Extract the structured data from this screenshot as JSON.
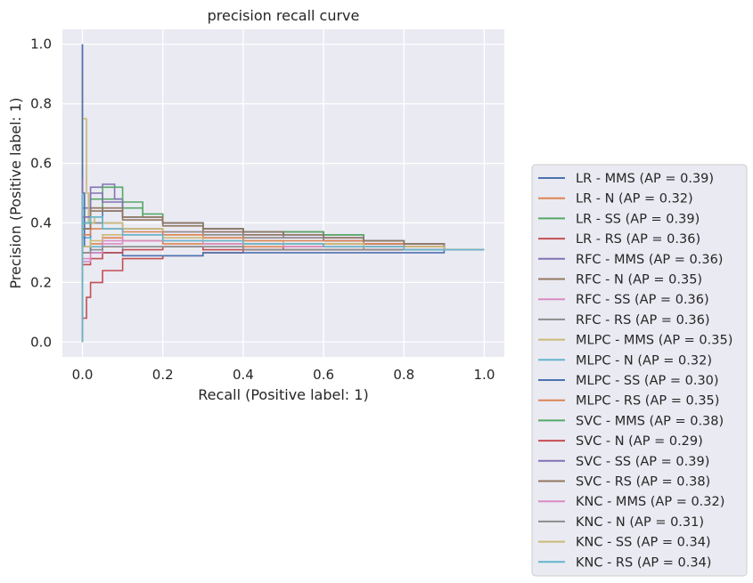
{
  "chart_data": {
    "type": "line",
    "title": "precision recall curve",
    "xlabel": "Recall (Positive label: 1)",
    "ylabel": "Precision (Positive label: 1)",
    "xlim": [
      -0.05,
      1.05
    ],
    "ylim": [
      -0.05,
      1.05
    ],
    "xticks": [
      0.0,
      0.2,
      0.4,
      0.6,
      0.8,
      1.0
    ],
    "xtick_labels": [
      "0.0",
      "0.2",
      "0.4",
      "0.6",
      "0.8",
      "1.0"
    ],
    "yticks": [
      0.0,
      0.2,
      0.4,
      0.6,
      0.8,
      1.0
    ],
    "ytick_labels": [
      "0.0",
      "0.2",
      "0.4",
      "0.6",
      "0.8",
      "1.0"
    ],
    "grid": true,
    "legend_position": "outside-right",
    "series": [
      {
        "name": "LR - MMS (AP = 0.39)",
        "color": "#4c72b0",
        "points": [
          [
            0,
            0.0
          ],
          [
            0,
            0.5
          ],
          [
            0.02,
            0.35
          ],
          [
            0.05,
            0.4
          ],
          [
            0.1,
            0.44
          ],
          [
            0.2,
            0.42
          ],
          [
            0.3,
            0.4
          ],
          [
            0.4,
            0.38
          ],
          [
            0.5,
            0.37
          ],
          [
            0.6,
            0.36
          ],
          [
            0.7,
            0.35
          ],
          [
            0.8,
            0.33
          ],
          [
            0.9,
            0.32
          ],
          [
            1.0,
            0.31
          ]
        ]
      },
      {
        "name": "LR - N (AP = 0.32)",
        "color": "#dd8452",
        "points": [
          [
            0,
            0.0
          ],
          [
            0,
            0.5
          ],
          [
            0.02,
            0.3
          ],
          [
            0.05,
            0.33
          ],
          [
            0.1,
            0.35
          ],
          [
            0.2,
            0.34
          ],
          [
            0.3,
            0.33
          ],
          [
            0.4,
            0.33
          ],
          [
            0.5,
            0.32
          ],
          [
            0.6,
            0.32
          ],
          [
            0.7,
            0.32
          ],
          [
            0.8,
            0.31
          ],
          [
            0.9,
            0.31
          ],
          [
            1.0,
            0.31
          ]
        ]
      },
      {
        "name": "LR - SS (AP = 0.39)",
        "color": "#55a868",
        "points": [
          [
            0,
            0.0
          ],
          [
            0,
            0.5
          ],
          [
            0.02,
            0.38
          ],
          [
            0.05,
            0.45
          ],
          [
            0.1,
            0.48
          ],
          [
            0.15,
            0.45
          ],
          [
            0.2,
            0.42
          ],
          [
            0.3,
            0.4
          ],
          [
            0.4,
            0.38
          ],
          [
            0.5,
            0.37
          ],
          [
            0.6,
            0.37
          ],
          [
            0.7,
            0.36
          ],
          [
            0.8,
            0.34
          ],
          [
            0.9,
            0.33
          ],
          [
            1.0,
            0.31
          ]
        ]
      },
      {
        "name": "LR - RS (AP = 0.36)",
        "color": "#c44e52",
        "points": [
          [
            0,
            0.0
          ],
          [
            0,
            0.12
          ],
          [
            0.01,
            0.08
          ],
          [
            0.02,
            0.15
          ],
          [
            0.05,
            0.2
          ],
          [
            0.1,
            0.24
          ],
          [
            0.2,
            0.28
          ],
          [
            0.3,
            0.29
          ],
          [
            0.4,
            0.3
          ],
          [
            0.5,
            0.31
          ],
          [
            0.6,
            0.32
          ],
          [
            0.7,
            0.33
          ],
          [
            0.8,
            0.32
          ],
          [
            0.9,
            0.32
          ],
          [
            1.0,
            0.31
          ]
        ]
      },
      {
        "name": "RFC - MMS (AP = 0.36)",
        "color": "#8172b3",
        "points": [
          [
            0,
            0.0
          ],
          [
            0,
            0.6
          ],
          [
            0.02,
            0.45
          ],
          [
            0.05,
            0.52
          ],
          [
            0.08,
            0.53
          ],
          [
            0.1,
            0.48
          ],
          [
            0.2,
            0.42
          ],
          [
            0.3,
            0.4
          ],
          [
            0.4,
            0.37
          ],
          [
            0.5,
            0.36
          ],
          [
            0.6,
            0.35
          ],
          [
            0.7,
            0.34
          ],
          [
            0.8,
            0.33
          ],
          [
            0.9,
            0.32
          ],
          [
            1.0,
            0.31
          ]
        ]
      },
      {
        "name": "RFC - N (AP = 0.35)",
        "color": "#937860",
        "points": [
          [
            0,
            0.0
          ],
          [
            0,
            0.5
          ],
          [
            0.02,
            0.4
          ],
          [
            0.05,
            0.45
          ],
          [
            0.1,
            0.44
          ],
          [
            0.2,
            0.41
          ],
          [
            0.3,
            0.39
          ],
          [
            0.4,
            0.37
          ],
          [
            0.5,
            0.36
          ],
          [
            0.6,
            0.37
          ],
          [
            0.7,
            0.36
          ],
          [
            0.8,
            0.34
          ],
          [
            0.9,
            0.33
          ],
          [
            1.0,
            0.31
          ]
        ]
      },
      {
        "name": "RFC - SS (AP = 0.36)",
        "color": "#da8bc3",
        "points": [
          [
            0,
            0.0
          ],
          [
            0,
            0.22
          ],
          [
            0.02,
            0.28
          ],
          [
            0.05,
            0.3
          ],
          [
            0.1,
            0.34
          ],
          [
            0.2,
            0.36
          ],
          [
            0.3,
            0.37
          ],
          [
            0.4,
            0.36
          ],
          [
            0.5,
            0.35
          ],
          [
            0.6,
            0.35
          ],
          [
            0.7,
            0.34
          ],
          [
            0.8,
            0.33
          ],
          [
            0.9,
            0.32
          ],
          [
            1.0,
            0.31
          ]
        ]
      },
      {
        "name": "RFC - RS (AP = 0.36)",
        "color": "#8c8c8c",
        "points": [
          [
            0,
            0.0
          ],
          [
            0,
            1.0
          ],
          [
            0.005,
            0.5
          ],
          [
            0.02,
            0.38
          ],
          [
            0.05,
            0.4
          ],
          [
            0.1,
            0.4
          ],
          [
            0.2,
            0.38
          ],
          [
            0.3,
            0.37
          ],
          [
            0.4,
            0.36
          ],
          [
            0.5,
            0.35
          ],
          [
            0.6,
            0.35
          ],
          [
            0.7,
            0.34
          ],
          [
            0.8,
            0.33
          ],
          [
            0.9,
            0.32
          ],
          [
            1.0,
            0.31
          ]
        ]
      },
      {
        "name": "MLPC - MMS (AP = 0.35)",
        "color": "#ccb974",
        "points": [
          [
            0,
            0.0
          ],
          [
            0,
            0.9
          ],
          [
            0.01,
            0.75
          ],
          [
            0.015,
            0.5
          ],
          [
            0.03,
            0.4
          ],
          [
            0.05,
            0.42
          ],
          [
            0.1,
            0.4
          ],
          [
            0.2,
            0.38
          ],
          [
            0.3,
            0.36
          ],
          [
            0.4,
            0.35
          ],
          [
            0.5,
            0.34
          ],
          [
            0.6,
            0.33
          ],
          [
            0.7,
            0.33
          ],
          [
            0.8,
            0.32
          ],
          [
            0.9,
            0.32
          ],
          [
            1.0,
            0.31
          ]
        ]
      },
      {
        "name": "MLPC - N (AP = 0.32)",
        "color": "#64b5cd",
        "points": [
          [
            0,
            0.0
          ],
          [
            0,
            0.5
          ],
          [
            0.02,
            0.35
          ],
          [
            0.05,
            0.32
          ],
          [
            0.1,
            0.3
          ],
          [
            0.2,
            0.32
          ],
          [
            0.3,
            0.32
          ],
          [
            0.4,
            0.32
          ],
          [
            0.5,
            0.31
          ],
          [
            0.6,
            0.31
          ],
          [
            0.7,
            0.31
          ],
          [
            0.8,
            0.31
          ],
          [
            0.9,
            0.31
          ],
          [
            1.0,
            0.31
          ]
        ]
      },
      {
        "name": "MLPC - SS (AP = 0.30)",
        "color": "#4c72b0",
        "points": [
          [
            0,
            0.0
          ],
          [
            0,
            1.0
          ],
          [
            0.005,
            0.5
          ],
          [
            0.02,
            0.32
          ],
          [
            0.05,
            0.3
          ],
          [
            0.1,
            0.3
          ],
          [
            0.2,
            0.29
          ],
          [
            0.3,
            0.29
          ],
          [
            0.4,
            0.3
          ],
          [
            0.5,
            0.3
          ],
          [
            0.6,
            0.3
          ],
          [
            0.7,
            0.3
          ],
          [
            0.8,
            0.3
          ],
          [
            0.9,
            0.3
          ],
          [
            1.0,
            0.31
          ]
        ]
      },
      {
        "name": "MLPC - RS (AP = 0.35)",
        "color": "#dd8452",
        "points": [
          [
            0,
            0.0
          ],
          [
            0,
            0.4
          ],
          [
            0.02,
            0.36
          ],
          [
            0.05,
            0.38
          ],
          [
            0.1,
            0.38
          ],
          [
            0.2,
            0.37
          ],
          [
            0.3,
            0.36
          ],
          [
            0.4,
            0.35
          ],
          [
            0.5,
            0.34
          ],
          [
            0.6,
            0.34
          ],
          [
            0.7,
            0.34
          ],
          [
            0.8,
            0.33
          ],
          [
            0.9,
            0.32
          ],
          [
            1.0,
            0.31
          ]
        ]
      },
      {
        "name": "SVC - MMS (AP = 0.38)",
        "color": "#55a868",
        "points": [
          [
            0,
            0.0
          ],
          [
            0,
            0.5
          ],
          [
            0.02,
            0.4
          ],
          [
            0.05,
            0.48
          ],
          [
            0.1,
            0.52
          ],
          [
            0.15,
            0.47
          ],
          [
            0.2,
            0.43
          ],
          [
            0.3,
            0.4
          ],
          [
            0.4,
            0.38
          ],
          [
            0.5,
            0.37
          ],
          [
            0.6,
            0.37
          ],
          [
            0.7,
            0.36
          ],
          [
            0.8,
            0.34
          ],
          [
            0.9,
            0.33
          ],
          [
            1.0,
            0.31
          ]
        ]
      },
      {
        "name": "SVC - N (AP = 0.29)",
        "color": "#c44e52",
        "points": [
          [
            0,
            0.0
          ],
          [
            0,
            0.2
          ],
          [
            0.02,
            0.26
          ],
          [
            0.05,
            0.28
          ],
          [
            0.1,
            0.3
          ],
          [
            0.2,
            0.31
          ],
          [
            0.3,
            0.32
          ],
          [
            0.4,
            0.31
          ],
          [
            0.5,
            0.31
          ],
          [
            0.6,
            0.31
          ],
          [
            0.7,
            0.31
          ],
          [
            0.8,
            0.31
          ],
          [
            0.9,
            0.31
          ],
          [
            1.0,
            0.31
          ]
        ]
      },
      {
        "name": "SVC - SS (AP = 0.39)",
        "color": "#8172b3",
        "points": [
          [
            0,
            0.0
          ],
          [
            0,
            0.55
          ],
          [
            0.02,
            0.42
          ],
          [
            0.05,
            0.5
          ],
          [
            0.1,
            0.47
          ],
          [
            0.2,
            0.42
          ],
          [
            0.3,
            0.4
          ],
          [
            0.4,
            0.38
          ],
          [
            0.5,
            0.37
          ],
          [
            0.6,
            0.36
          ],
          [
            0.7,
            0.35
          ],
          [
            0.8,
            0.34
          ],
          [
            0.9,
            0.33
          ],
          [
            1.0,
            0.31
          ]
        ]
      },
      {
        "name": "SVC - RS (AP = 0.38)",
        "color": "#937860",
        "points": [
          [
            0,
            0.0
          ],
          [
            0,
            0.45
          ],
          [
            0.02,
            0.38
          ],
          [
            0.05,
            0.44
          ],
          [
            0.1,
            0.45
          ],
          [
            0.2,
            0.42
          ],
          [
            0.3,
            0.4
          ],
          [
            0.4,
            0.38
          ],
          [
            0.5,
            0.37
          ],
          [
            0.6,
            0.36
          ],
          [
            0.7,
            0.35
          ],
          [
            0.8,
            0.34
          ],
          [
            0.9,
            0.33
          ],
          [
            1.0,
            0.31
          ]
        ]
      },
      {
        "name": "KNC - MMS (AP = 0.32)",
        "color": "#da8bc3",
        "points": [
          [
            0,
            0.0
          ],
          [
            0,
            0.25
          ],
          [
            0.02,
            0.27
          ],
          [
            0.05,
            0.3
          ],
          [
            0.1,
            0.33
          ],
          [
            0.2,
            0.34
          ],
          [
            0.3,
            0.34
          ],
          [
            0.4,
            0.33
          ],
          [
            0.5,
            0.33
          ],
          [
            0.6,
            0.32
          ],
          [
            0.7,
            0.32
          ],
          [
            0.8,
            0.32
          ],
          [
            0.9,
            0.31
          ],
          [
            1.0,
            0.31
          ]
        ]
      },
      {
        "name": "KNC - N (AP = 0.31)",
        "color": "#8c8c8c",
        "points": [
          [
            0,
            0.0
          ],
          [
            0,
            0.3
          ],
          [
            0.02,
            0.3
          ],
          [
            0.05,
            0.31
          ],
          [
            0.1,
            0.32
          ],
          [
            0.2,
            0.32
          ],
          [
            0.3,
            0.32
          ],
          [
            0.4,
            0.32
          ],
          [
            0.5,
            0.31
          ],
          [
            0.6,
            0.31
          ],
          [
            0.7,
            0.31
          ],
          [
            0.8,
            0.31
          ],
          [
            0.9,
            0.31
          ],
          [
            1.0,
            0.31
          ]
        ]
      },
      {
        "name": "KNC - SS (AP = 0.34)",
        "color": "#ccb974",
        "points": [
          [
            0,
            0.0
          ],
          [
            0,
            0.3
          ],
          [
            0.02,
            0.32
          ],
          [
            0.05,
            0.34
          ],
          [
            0.1,
            0.36
          ],
          [
            0.2,
            0.36
          ],
          [
            0.3,
            0.35
          ],
          [
            0.4,
            0.34
          ],
          [
            0.5,
            0.33
          ],
          [
            0.6,
            0.33
          ],
          [
            0.7,
            0.33
          ],
          [
            0.8,
            0.32
          ],
          [
            0.9,
            0.32
          ],
          [
            1.0,
            0.31
          ]
        ]
      },
      {
        "name": "KNC - RS (AP = 0.34)",
        "color": "#64b5cd",
        "points": [
          [
            0,
            0.0
          ],
          [
            0,
            0.5
          ],
          [
            0.02,
            0.4
          ],
          [
            0.05,
            0.42
          ],
          [
            0.1,
            0.38
          ],
          [
            0.2,
            0.36
          ],
          [
            0.3,
            0.34
          ],
          [
            0.4,
            0.34
          ],
          [
            0.5,
            0.33
          ],
          [
            0.6,
            0.33
          ],
          [
            0.7,
            0.32
          ],
          [
            0.8,
            0.32
          ],
          [
            0.9,
            0.31
          ],
          [
            1.0,
            0.31
          ]
        ]
      }
    ]
  }
}
